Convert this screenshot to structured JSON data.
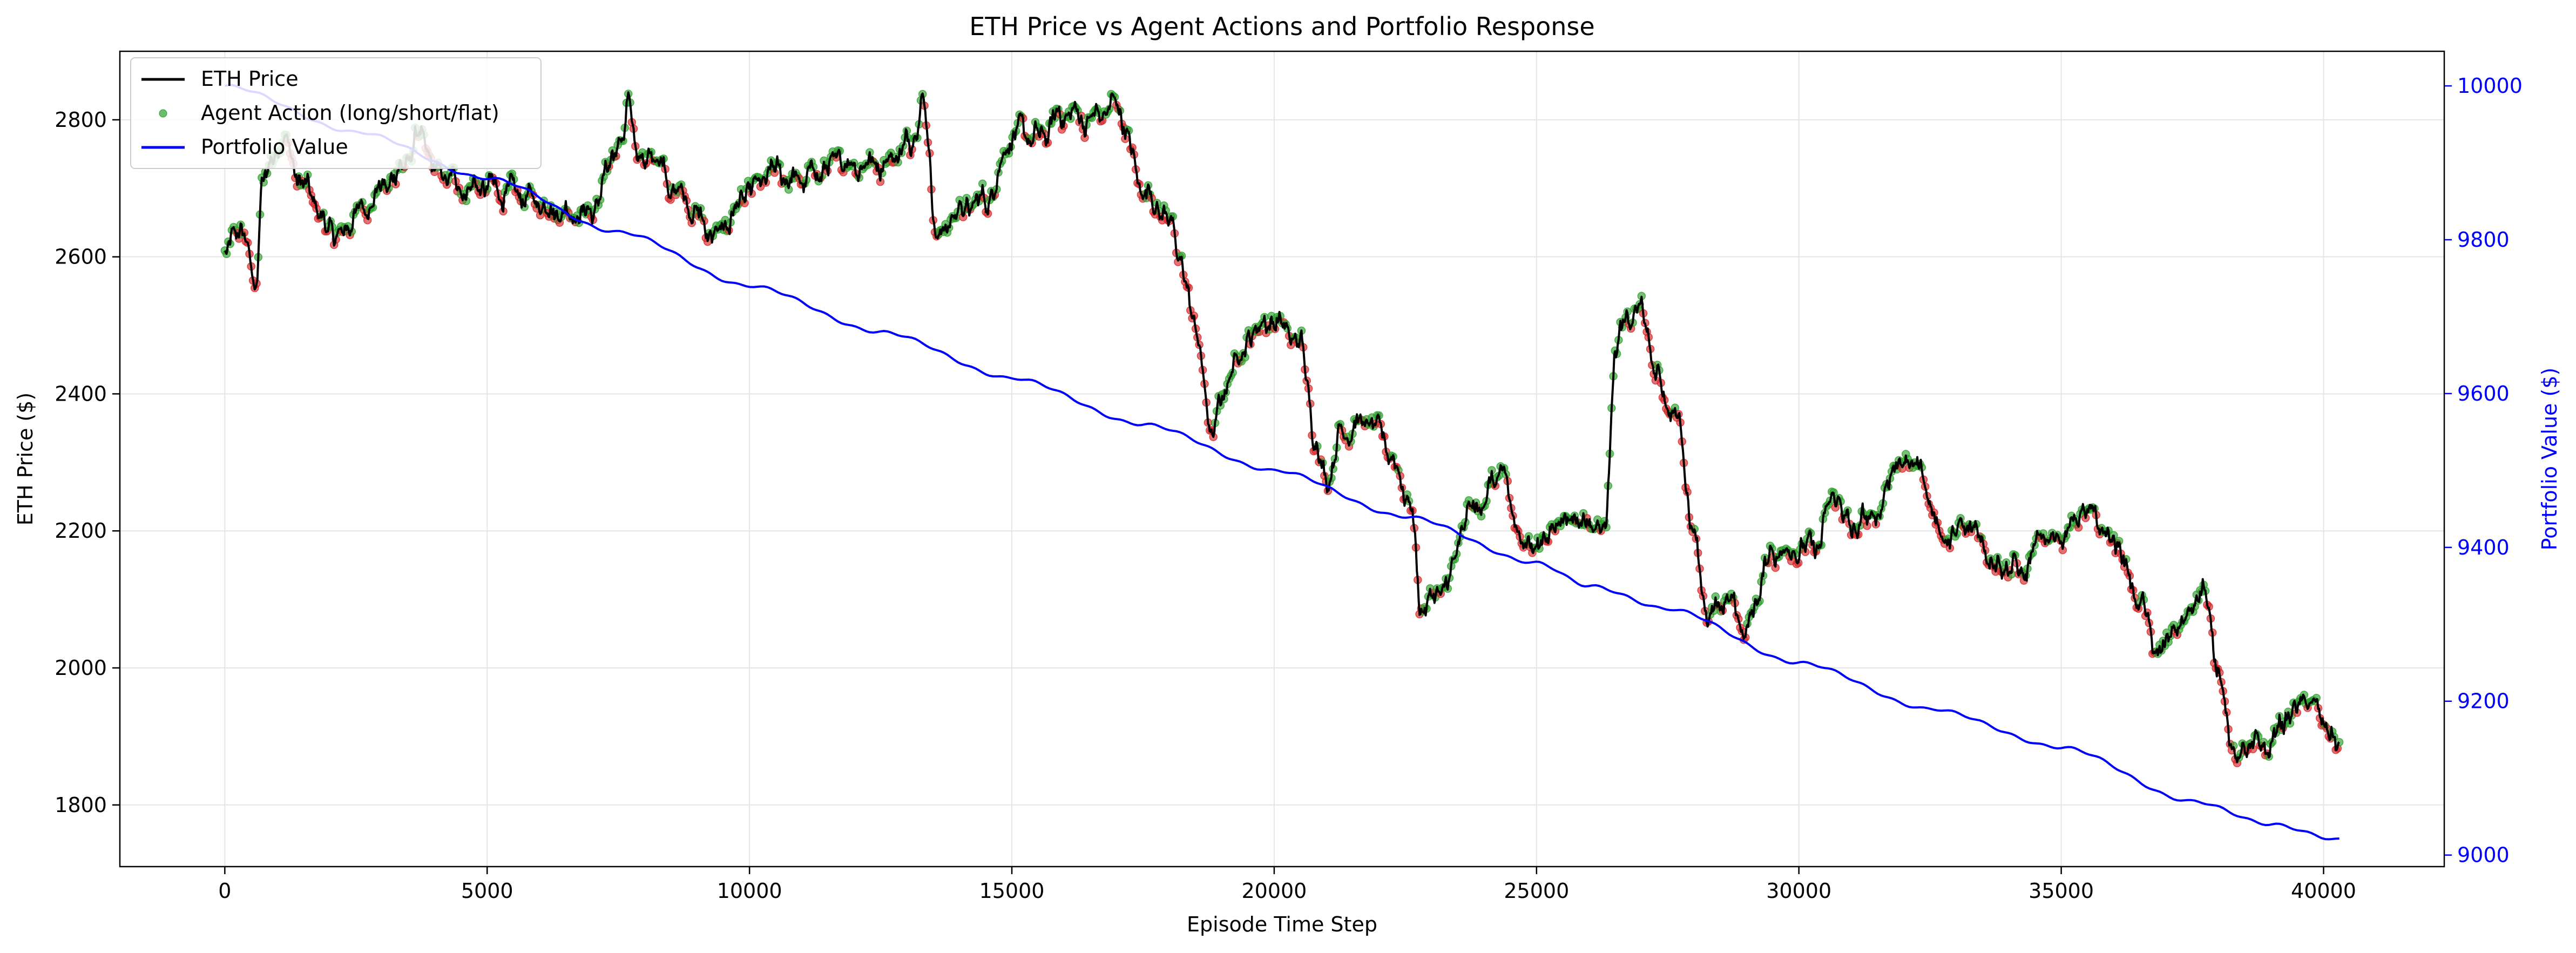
{
  "chart_data": {
    "type": "line",
    "title": "ETH Price vs Agent Actions and Portfolio Response",
    "xlabel": "Episode Time Step",
    "ylabel": "ETH Price ($)",
    "ylabel_right": "Portfolio Value ($)",
    "xlim": [
      -2000,
      42300
    ],
    "ylim": [
      1710,
      2900
    ],
    "ylim_right": [
      8985,
      10045
    ],
    "x_ticks": [
      0,
      5000,
      10000,
      15000,
      20000,
      25000,
      30000,
      35000,
      40000
    ],
    "y_ticks": [
      1800,
      2000,
      2200,
      2400,
      2600,
      2800
    ],
    "y_ticks_right": [
      9000,
      9200,
      9400,
      9600,
      9800,
      10000
    ],
    "grid": true,
    "legend_position": "top-left",
    "colors": {
      "eth_price": "#000000",
      "action_long": "#2ca02c",
      "action_short": "#d62728",
      "portfolio": "#0000ff"
    },
    "series": [
      {
        "name": "ETH Price",
        "axis": "left",
        "x": [
          0,
          300,
          600,
          700,
          1000,
          1100,
          1500,
          2000,
          2200,
          2500,
          3000,
          3500,
          3700,
          4000,
          4500,
          5000,
          5500,
          6000,
          6500,
          7000,
          7300,
          7600,
          7700,
          7900,
          8200,
          8700,
          9000,
          9300,
          9500,
          10000,
          10500,
          11000,
          11500,
          12000,
          12500,
          13000,
          13300,
          13600,
          14000,
          14500,
          15000,
          15500,
          16000,
          16500,
          17000,
          17500,
          18000,
          18200,
          18500,
          18800,
          19000,
          19300,
          19700,
          20000,
          20500,
          20800,
          21000,
          21300,
          21700,
          22000,
          22300,
          22600,
          22800,
          23200,
          23800,
          24300,
          24700,
          25000,
          25500,
          26000,
          26300,
          26500,
          26700,
          27000,
          27300,
          27700,
          28000,
          28300,
          28600,
          29000,
          29500,
          30000,
          30300,
          30700,
          31000,
          31500,
          31800,
          32200,
          32800,
          33300,
          33800,
          34300,
          34700,
          35000,
          35500,
          36000,
          36500,
          36800,
          37300,
          37700,
          38000,
          38300,
          38600,
          38900,
          39300,
          39700,
          40000,
          40300
        ],
        "y": [
          2600,
          2640,
          2560,
          2700,
          2760,
          2780,
          2700,
          2640,
          2625,
          2665,
          2700,
          2740,
          2780,
          2720,
          2705,
          2700,
          2690,
          2680,
          2670,
          2665,
          2720,
          2780,
          2840,
          2730,
          2750,
          2690,
          2660,
          2620,
          2650,
          2690,
          2720,
          2710,
          2730,
          2740,
          2740,
          2760,
          2830,
          2630,
          2670,
          2680,
          2780,
          2770,
          2810,
          2800,
          2820,
          2700,
          2660,
          2590,
          2500,
          2340,
          2390,
          2460,
          2500,
          2510,
          2470,
          2330,
          2280,
          2350,
          2360,
          2340,
          2300,
          2240,
          2090,
          2110,
          2230,
          2280,
          2190,
          2180,
          2220,
          2220,
          2200,
          2470,
          2500,
          2520,
          2420,
          2360,
          2200,
          2060,
          2100,
          2060,
          2170,
          2180,
          2170,
          2250,
          2200,
          2220,
          2300,
          2300,
          2190,
          2200,
          2160,
          2140,
          2190,
          2200,
          2220,
          2190,
          2100,
          2020,
          2060,
          2120,
          2000,
          1870,
          1880,
          1880,
          1930,
          1950,
          1920,
          1880
        ]
      },
      {
        "name": "Portfolio Value",
        "axis": "right",
        "x": [
          0,
          2500,
          5000,
          7500,
          10000,
          12500,
          15000,
          17500,
          20000,
          22500,
          25000,
          26000,
          27500,
          30000,
          32500,
          35000,
          37500,
          39000,
          40300
        ],
        "y": [
          10000,
          9940,
          9880,
          9810,
          9740,
          9680,
          9620,
          9560,
          9500,
          9440,
          9380,
          9350,
          9320,
          9250,
          9190,
          9140,
          9070,
          9040,
          9020
        ]
      },
      {
        "name": "Agent Action (long/short/flat)",
        "axis": "left",
        "marker": "point"
      }
    ]
  }
}
